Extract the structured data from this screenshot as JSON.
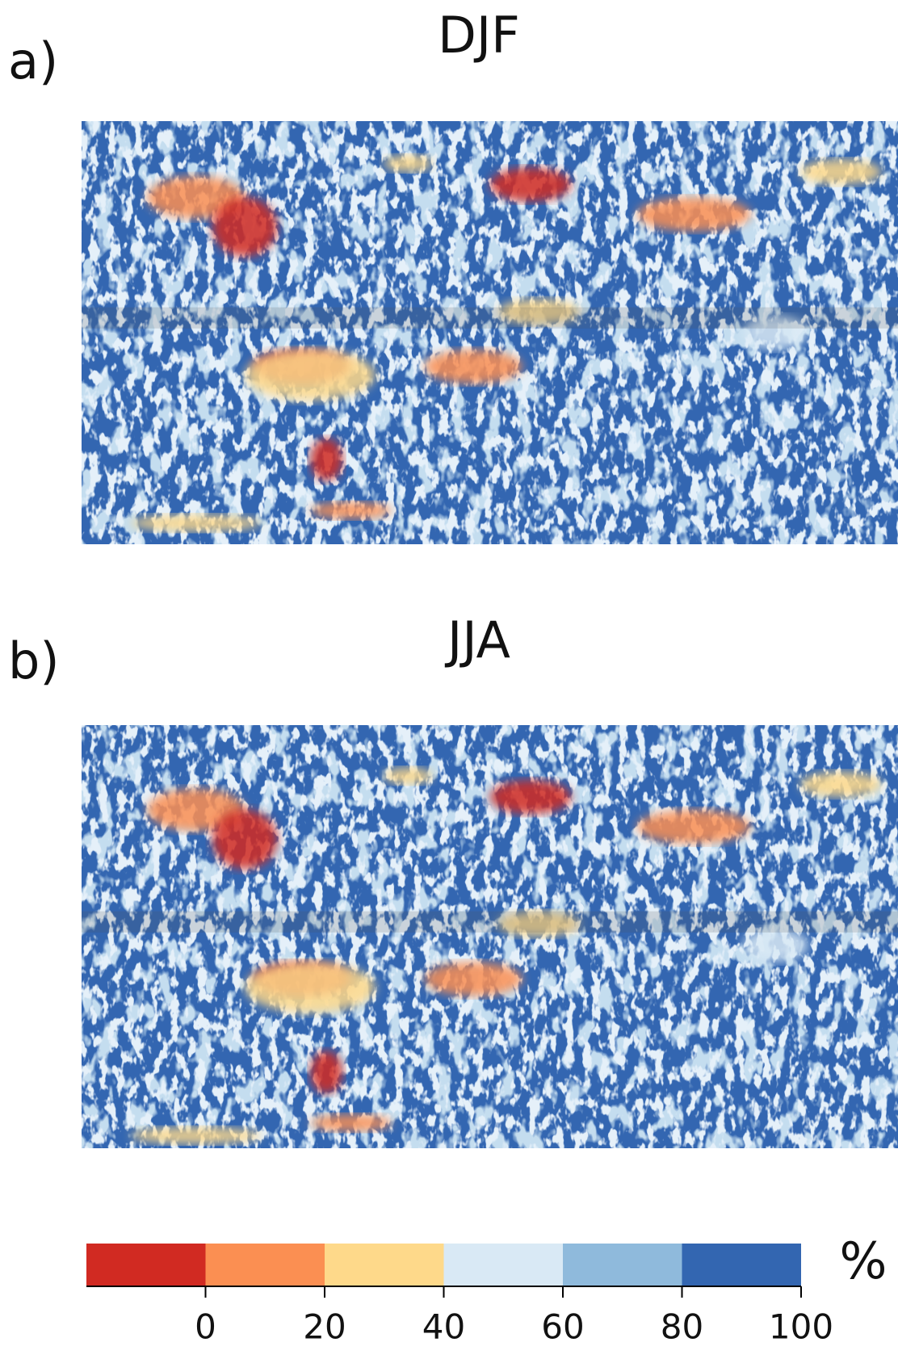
{
  "panels": [
    {
      "label": "a)",
      "title": "DJF"
    },
    {
      "label": "b)",
      "title": "JJA"
    }
  ],
  "colorbar": {
    "colors": [
      "#d12a22",
      "#fb8f52",
      "#fed98a",
      "#d9e9f5",
      "#8fbadc",
      "#3366b1"
    ],
    "ticks": [
      0,
      20,
      40,
      60,
      80,
      100
    ],
    "unit": "%"
  }
}
